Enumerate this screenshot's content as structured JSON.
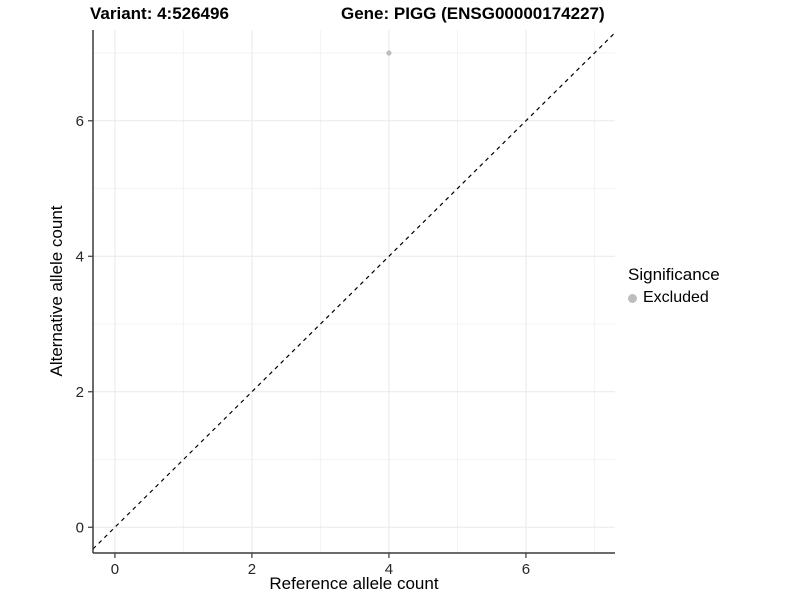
{
  "title": {
    "variant": "Variant: 4:526496",
    "gene": "Gene: PIGG (ENSG00000174227)"
  },
  "axes": {
    "x_label": "Reference allele count",
    "y_label": "Alternative allele count"
  },
  "legend": {
    "title": "Significance",
    "items": [
      {
        "label": "Excluded",
        "color": "#bdbdbd"
      }
    ]
  },
  "colors": {
    "point": "#bdbdbd",
    "grid_major": "#e9e9e9",
    "grid_minor": "#f3f3f3",
    "axis_line": "#3a3a3a",
    "tick_mark": "#3a3a3a",
    "reference_line": "#000000"
  },
  "chart_data": {
    "type": "scatter",
    "title": "Variant: 4:526496   Gene: PIGG (ENSG00000174227)",
    "xlabel": "Reference allele count",
    "ylabel": "Alternative allele count",
    "xlim": [
      -0.32,
      7.3
    ],
    "ylim": [
      -0.38,
      7.34
    ],
    "x_ticks": [
      0,
      2,
      4,
      6
    ],
    "y_ticks": [
      0,
      2,
      4,
      6
    ],
    "x_minor_ticks": [
      1,
      3,
      5,
      7
    ],
    "y_minor_ticks": [
      1,
      3,
      5,
      7
    ],
    "grid": true,
    "legend_position": "right",
    "legend_title": "Significance",
    "series": [
      {
        "name": "Excluded",
        "color": "#bdbdbd",
        "marker": "circle",
        "points": [
          {
            "x": 4,
            "y": 7
          }
        ]
      }
    ],
    "reference_line": {
      "kind": "identity",
      "slope": 1,
      "intercept": 0,
      "linestyle": "dashed",
      "color": "#000000"
    }
  }
}
